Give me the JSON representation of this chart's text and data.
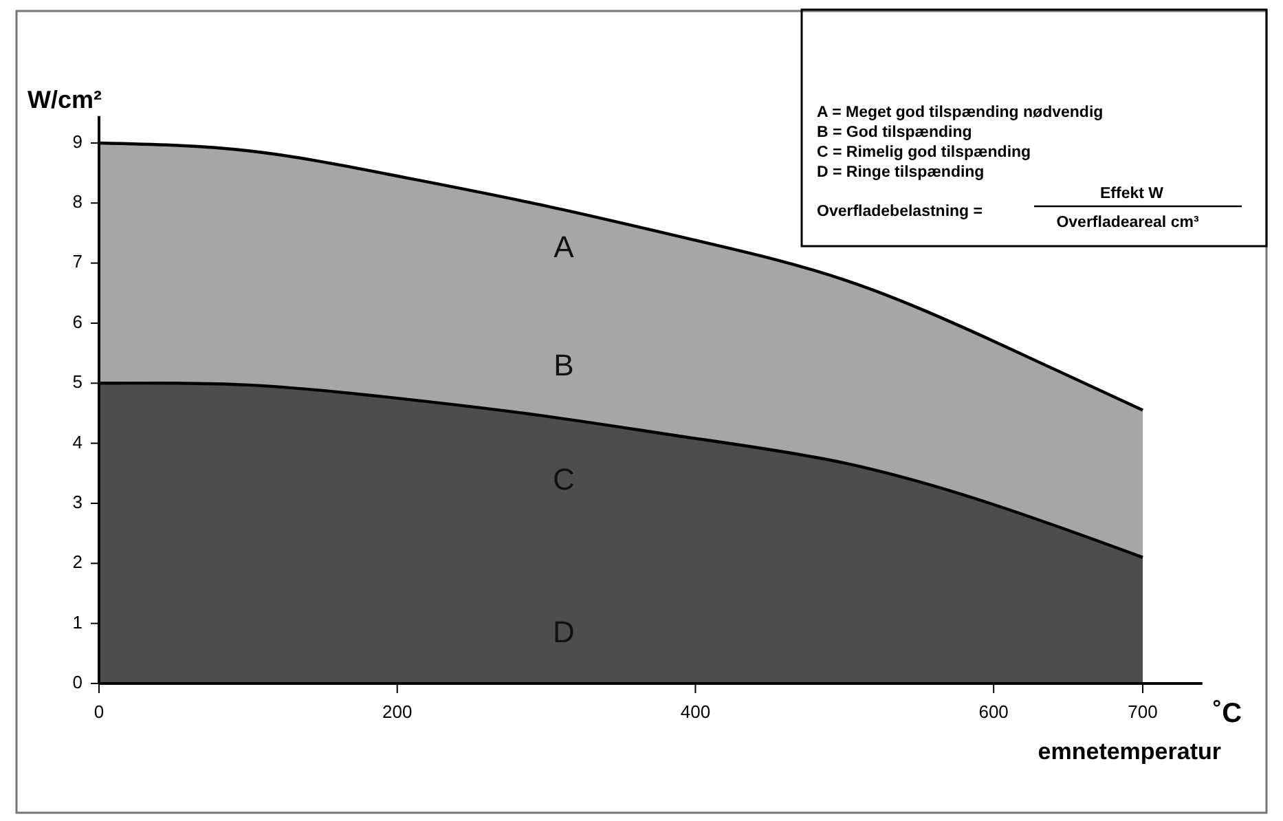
{
  "chart_data": {
    "type": "area",
    "ylabel": "W/cm²",
    "xlabel": "emnetemperatur",
    "x": [
      0,
      100,
      200,
      300,
      400,
      500,
      600,
      700
    ],
    "series": [
      {
        "color": "#a6a6a6",
        "values": [
          9,
          8.87,
          8.45,
          7.95,
          7.38,
          6.72,
          5.7,
          4.55
        ]
      },
      {
        "color": "#4d4d4d",
        "values": [
          5,
          4.97,
          4.75,
          4.45,
          4.08,
          3.67,
          2.98,
          2.1
        ]
      }
    ],
    "xlim": [
      0,
      740
    ],
    "xticks": [
      0,
      200,
      400,
      600,
      700
    ],
    "ylim": [
      0,
      9.45
    ],
    "yticks": [
      0,
      1,
      2,
      3,
      4,
      5,
      6,
      7,
      8,
      9
    ],
    "grid": false,
    "annotations": [
      "A",
      "B",
      "C",
      "D",
      "A = Meget god tilspænding nødvendig",
      "B = God tilspænding",
      "C = Rimelig god tilspænding",
      "D = Ringe tilspænding",
      "Overfladebelastning =",
      "Effekt W",
      "Overfladeareal cm³",
      "˚C"
    ]
  }
}
